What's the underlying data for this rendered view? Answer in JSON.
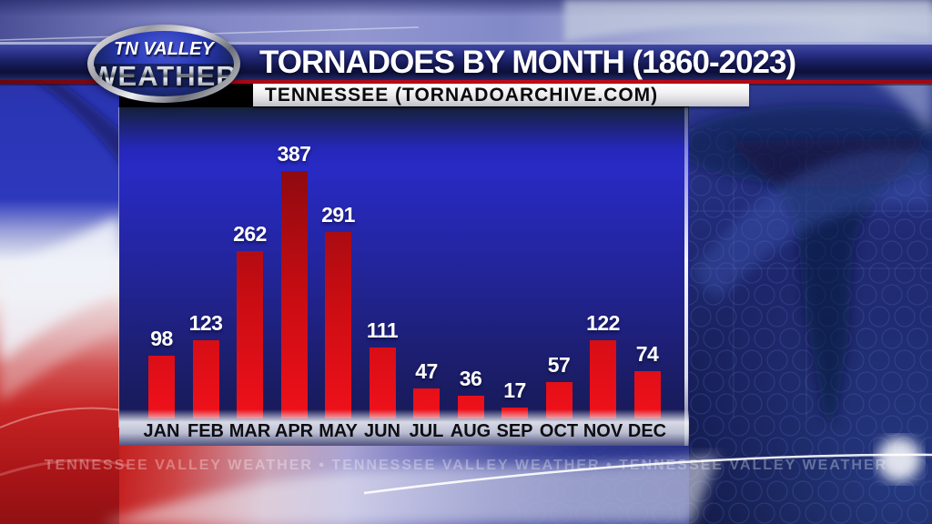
{
  "header": {
    "title": "TORNADOES BY MONTH (1860-2023)",
    "subtitle": "TENNESSEE (TORNADOARCHIVE.COM)"
  },
  "logo": {
    "top": "TN VALLEY",
    "bottom": "WEATHER"
  },
  "ticker": {
    "text": "TENNESSEE VALLEY WEATHER • TENNESSEE VALLEY WEATHER • TENNESSEE VALLEY WEATHER"
  },
  "colors": {
    "bar_red": "#d40e14",
    "panel_blue": "#2727b8",
    "header_navy": "#161b58",
    "red_line": "#c00a16",
    "value_label": "#ffffff",
    "month_label": "#0d0d12"
  },
  "chart_data": {
    "type": "bar",
    "title": "TORNADOES BY MONTH (1860-2023)",
    "subtitle": "TENNESSEE (TORNADOARCHIVE.COM)",
    "categories": [
      "JAN",
      "FEB",
      "MAR",
      "APR",
      "MAY",
      "JUN",
      "JUL",
      "AUG",
      "SEP",
      "OCT",
      "NOV",
      "DEC"
    ],
    "values": [
      98,
      123,
      262,
      387,
      291,
      111,
      47,
      36,
      17,
      57,
      122,
      74
    ],
    "data_labels": true,
    "ylim": [
      0,
      400
    ],
    "grid": false,
    "legend": false,
    "bar_colors": {
      "top": "#8f0a10",
      "mid": "#cc0d13",
      "bottom": "#f0101a"
    }
  }
}
